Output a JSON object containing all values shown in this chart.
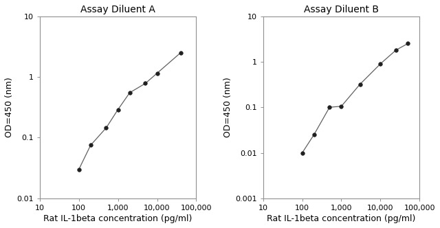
{
  "title_A": "Assay Diluent A",
  "title_B": "Assay Diluent B",
  "xlabel": "Rat IL-1beta concentration (pg/ml)",
  "ylabel": "OD=450 (nm)",
  "plot_A": {
    "x_data": [
      100,
      200,
      500,
      1000,
      2000,
      5000,
      10000,
      40000
    ],
    "y_data": [
      0.03,
      0.075,
      0.145,
      0.29,
      0.55,
      0.78,
      1.15,
      2.5
    ],
    "xlim": [
      10,
      100000
    ],
    "ylim": [
      0.01,
      10
    ],
    "xticks": [
      10,
      100,
      1000,
      10000,
      100000
    ],
    "xtick_labels": [
      "10",
      "100",
      "1,000",
      "10,000",
      "100,000"
    ],
    "yticks": [
      0.01,
      0.1,
      1,
      10
    ],
    "ytick_labels": [
      "0.01",
      "0.1",
      "1",
      "10"
    ]
  },
  "plot_B": {
    "x_data": [
      100,
      200,
      500,
      1000,
      3000,
      10000,
      25000,
      50000
    ],
    "y_data": [
      0.01,
      0.025,
      0.1,
      0.105,
      0.32,
      0.9,
      1.8,
      2.5
    ],
    "xlim": [
      10,
      100000
    ],
    "ylim": [
      0.001,
      10
    ],
    "xticks": [
      10,
      100,
      1000,
      10000,
      100000
    ],
    "xtick_labels": [
      "10",
      "100",
      "1,000",
      "10,000",
      "100,000"
    ],
    "yticks": [
      0.001,
      0.01,
      0.1,
      1,
      10
    ],
    "ytick_labels": [
      "0.001",
      "0.01",
      "0.1",
      "1",
      "10"
    ]
  },
  "line_color": "#606060",
  "marker_color": "#202020",
  "marker_size": 4,
  "title_fontsize": 10,
  "label_fontsize": 9,
  "tick_fontsize": 8,
  "text_color": "#000000",
  "spine_color": "#909090",
  "background_color": "#ffffff"
}
